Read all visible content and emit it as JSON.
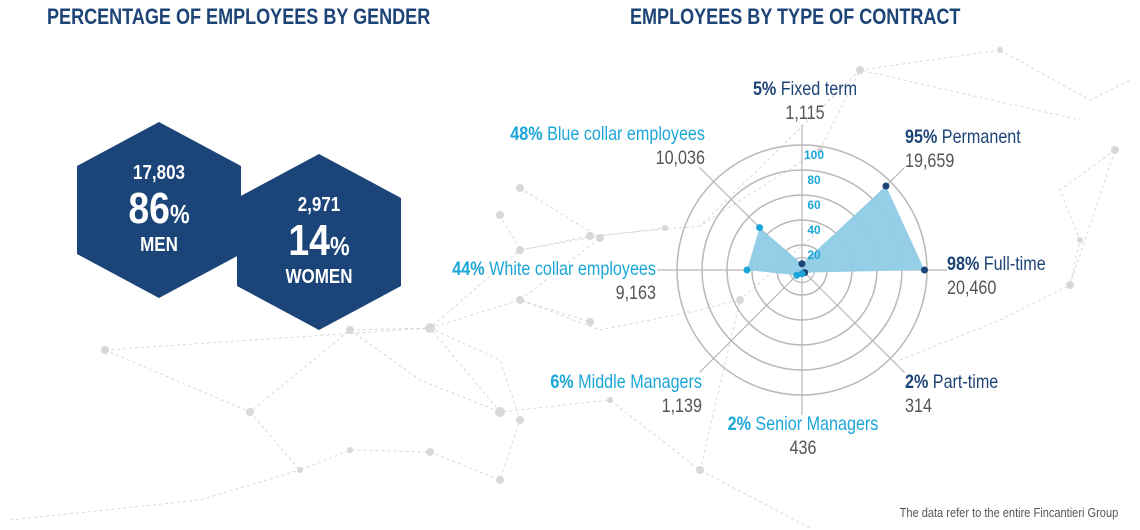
{
  "titles": {
    "gender": "PERCENTAGE OF EMPLOYEES BY GENDER",
    "contract": "EMPLOYEES BY TYPE OF CONTRACT"
  },
  "gender": {
    "men": {
      "count": "17,803",
      "percent": "86",
      "unit": "%",
      "label": "MEN"
    },
    "women": {
      "count": "2,971",
      "percent": "14",
      "unit": "%",
      "label": "WOMEN"
    }
  },
  "colors": {
    "navy": "#1d4476",
    "hex": "#1b4478",
    "cyan": "#1aa6d8",
    "fill": "#8ecbe6",
    "grid": "#b8b8b8",
    "count": "#555555",
    "network": "#d8d8d8"
  },
  "footnote": "The data refer to the entire Fincantieri Group",
  "chart_data": [
    {
      "type": "bar",
      "title": "PERCENTAGE OF EMPLOYEES BY GENDER",
      "categories": [
        "MEN",
        "WOMEN"
      ],
      "values": [
        86,
        14
      ],
      "counts": [
        17803,
        2971
      ]
    },
    {
      "type": "radar",
      "title": "EMPLOYEES BY TYPE OF CONTRACT",
      "rlim": [
        0,
        100
      ],
      "radial_ticks": [
        "20",
        "40",
        "60",
        "80",
        "100"
      ],
      "grid": true,
      "categories": [
        {
          "label": "Fixed term",
          "percent": 5,
          "pct_text": "5%",
          "count": "1,115",
          "color": "navy"
        },
        {
          "label": "Permanent",
          "percent": 95,
          "pct_text": "95%",
          "count": "19,659",
          "color": "navy"
        },
        {
          "label": "Full-time",
          "percent": 98,
          "pct_text": "98%",
          "count": "20,460",
          "color": "navy"
        },
        {
          "label": "Part-time",
          "percent": 2,
          "pct_text": "2%",
          "count": "314",
          "color": "navy"
        },
        {
          "label": "Senior Managers",
          "percent": 2,
          "pct_text": "2%",
          "count": "436",
          "color": "cyan"
        },
        {
          "label": "Middle Managers",
          "percent": 6,
          "pct_text": "6%",
          "count": "1,139",
          "color": "cyan"
        },
        {
          "label": "White collar employees",
          "percent": 44,
          "pct_text": "44%",
          "count": "9,163",
          "color": "cyan"
        },
        {
          "label": "Blue collar employees",
          "percent": 48,
          "pct_text": "48%",
          "count": "10,036",
          "color": "cyan"
        }
      ]
    }
  ]
}
